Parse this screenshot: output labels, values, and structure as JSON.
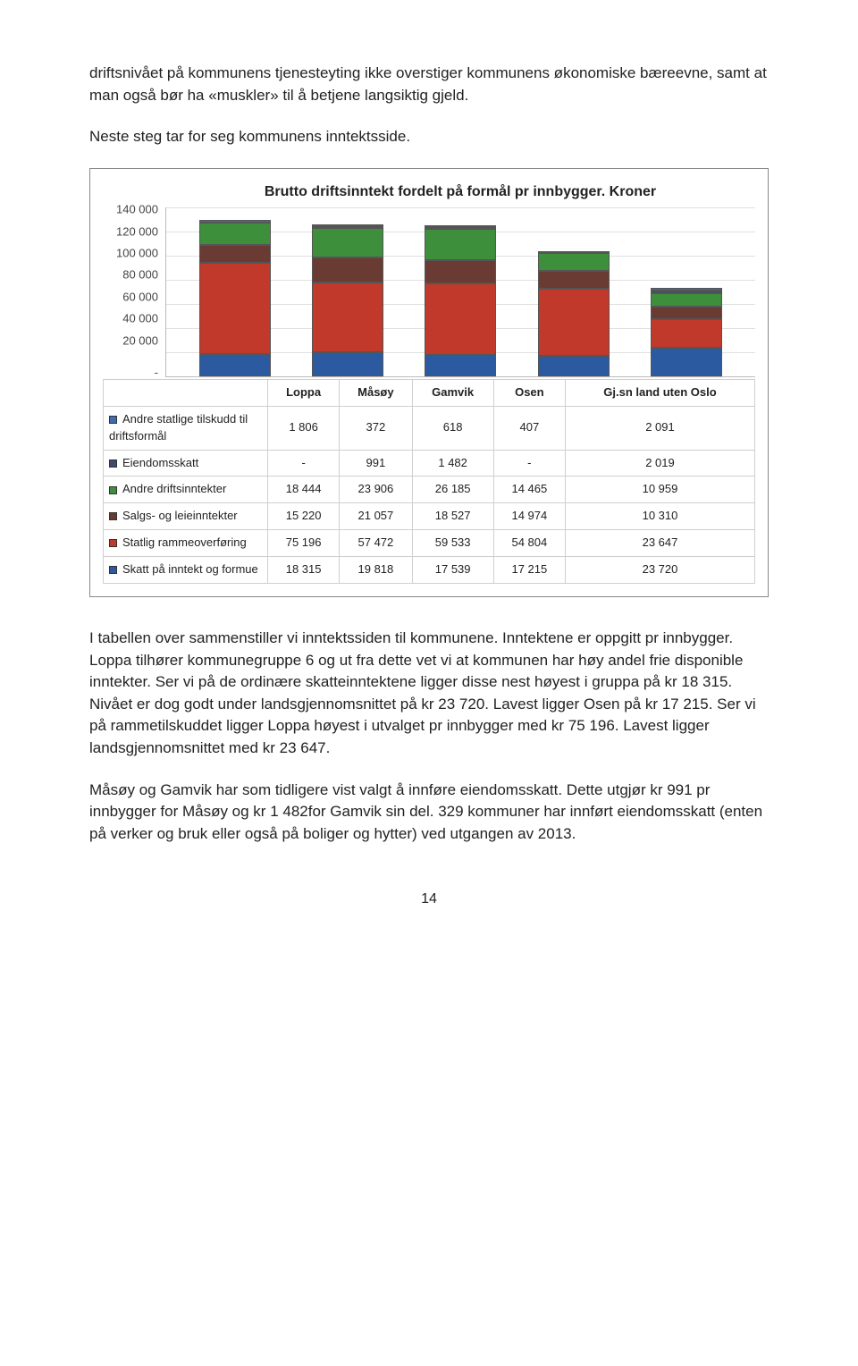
{
  "intro": {
    "p1": "driftsnivået på kommunens tjenesteyting ikke overstiger kommunens økonomiske bæreevne, samt at man også bør ha «muskler» til å betjene langsiktig gjeld.",
    "p2": "Neste steg tar for seg kommunens inntektsside."
  },
  "chart": {
    "title": "Brutto driftsinntekt fordelt på formål pr innbygger. Kroner",
    "type": "stacked-bar",
    "ymax": 140000,
    "ymin": 0,
    "ytick_step": 20000,
    "yticks": [
      "140 000",
      "120 000",
      "100 000",
      "80 000",
      "60 000",
      "40 000",
      "20 000",
      "-"
    ],
    "background_color": "#ffffff",
    "grid_color": "#e0e0e0",
    "bar_border_color": "#555555",
    "categories": [
      "Loppa",
      "Måsøy",
      "Gamvik",
      "Osen",
      "Gj.sn land uten Oslo"
    ],
    "series": [
      {
        "name": "Andre statlige tilskudd til driftsformål",
        "color": "#3b6db0"
      },
      {
        "name": "Eiendomsskatt",
        "color": "#3d4a6b"
      },
      {
        "name": "Andre driftsinntekter",
        "color": "#3e8f3c"
      },
      {
        "name": "Salgs- og leieinntekter",
        "color": "#6a3b32"
      },
      {
        "name": "Statlig rammeoverføring",
        "color": "#c0392b"
      },
      {
        "name": "Skatt på inntekt og formue",
        "color": "#2c5aa0"
      }
    ],
    "rows": [
      {
        "label": "Andre statlige tilskudd til driftsformål",
        "values": [
          "1 806",
          "372",
          "618",
          "407",
          "2 091"
        ]
      },
      {
        "label": "Eiendomsskatt",
        "values": [
          "-",
          "991",
          "1 482",
          "-",
          "2 019"
        ]
      },
      {
        "label": "Andre driftsinntekter",
        "values": [
          "18 444",
          "23 906",
          "26 185",
          "14 465",
          "10 959"
        ]
      },
      {
        "label": "Salgs- og leieinntekter",
        "values": [
          "15 220",
          "21 057",
          "18 527",
          "14 974",
          "10 310"
        ]
      },
      {
        "label": "Statlig rammeoverføring",
        "values": [
          "75 196",
          "57 472",
          "59 533",
          "54 804",
          "23 647"
        ]
      },
      {
        "label": "Skatt på inntekt og formue",
        "values": [
          "18 315",
          "19 818",
          "17 539",
          "17 215",
          "23 720"
        ]
      }
    ],
    "numeric": [
      [
        1806,
        372,
        618,
        407,
        2091
      ],
      [
        0,
        991,
        1482,
        0,
        2019
      ],
      [
        18444,
        23906,
        26185,
        14465,
        10959
      ],
      [
        15220,
        21057,
        18527,
        14974,
        10310
      ],
      [
        75196,
        57472,
        59533,
        54804,
        23647
      ],
      [
        18315,
        19818,
        17539,
        17215,
        23720
      ]
    ]
  },
  "body": {
    "p1": "I tabellen over sammenstiller vi inntektssiden til kommunene. Inntektene er oppgitt pr innbygger. Loppa tilhører kommunegruppe 6 og ut fra dette vet vi at kommunen har høy andel frie disponible inntekter. Ser vi på de ordinære skatteinntektene ligger disse nest høyest i gruppa på kr 18 315. Nivået er dog godt under landsgjennomsnittet på kr 23 720. Lavest ligger Osen på kr 17 215. Ser vi på rammetilskuddet ligger Loppa høyest i utvalget pr innbygger med kr 75 196. Lavest ligger landsgjennomsnittet med kr 23 647.",
    "p2": "Måsøy og Gamvik har som tidligere vist valgt å innføre eiendomsskatt. Dette utgjør kr 991 pr innbygger for Måsøy og kr 1 482for Gamvik sin del. 329 kommuner har innført eiendomsskatt (enten på verker og bruk eller også på boliger og hytter) ved utgangen av 2013."
  },
  "page_number": "14"
}
